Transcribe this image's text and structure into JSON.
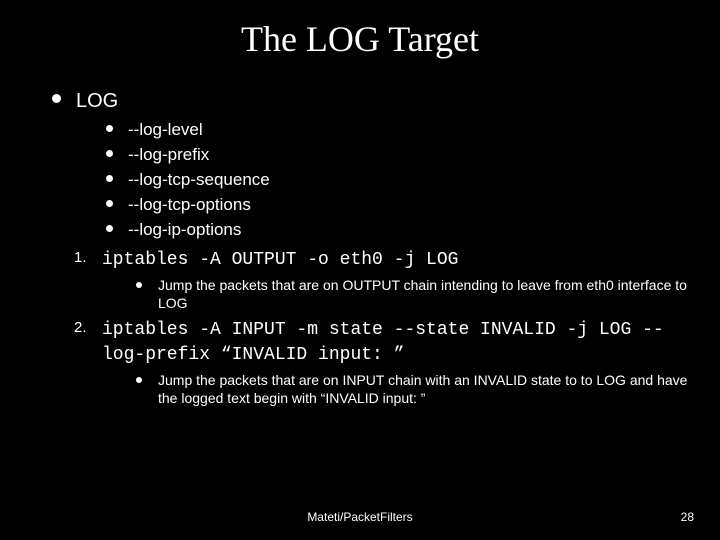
{
  "colors": {
    "background": "#000000",
    "text": "#ffffff"
  },
  "title": "The LOG  Target",
  "section": {
    "label": "LOG"
  },
  "options": [
    "--log-level",
    "--log-prefix",
    "--log-tcp-sequence",
    "--log-tcp-options",
    "--log-ip-options"
  ],
  "items": [
    {
      "num": "1.",
      "command": "iptables -A OUTPUT -o eth0 -j LOG",
      "desc": "Jump the packets that are on OUTPUT chain intending to leave from eth0 interface to LOG"
    },
    {
      "num": "2.",
      "command": "iptables -A INPUT -m state --state INVALID -j LOG --log-prefix “INVALID input: ”",
      "desc": "Jump the packets that are on INPUT chain with an INVALID state to to LOG and have the logged text begin with “INVALID input: ”"
    }
  ],
  "footer": {
    "center": "Mateti/PacketFilters",
    "page": "28"
  }
}
